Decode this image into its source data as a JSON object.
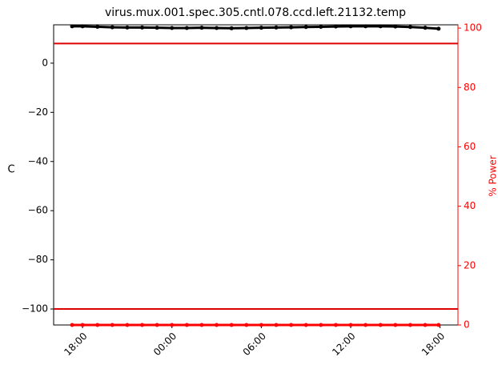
{
  "chart_data": {
    "type": "line",
    "title": "virus.mux.001.spec.305.cntl.078.ccd.left.21132.temp",
    "ylabel": "C",
    "y2label": "% Power",
    "x": [
      -0.7,
      0,
      1,
      2,
      3,
      4,
      5,
      6,
      7,
      8,
      9,
      10,
      11,
      12,
      13,
      14,
      15,
      16,
      17,
      18,
      19,
      20,
      21,
      22,
      23,
      23.9
    ],
    "series": [
      {
        "name": "C",
        "color": "#000000",
        "values": [
          15.0,
          15.0,
          14.8,
          14.6,
          14.5,
          14.5,
          14.4,
          14.3,
          14.3,
          14.4,
          14.3,
          14.2,
          14.3,
          14.4,
          14.5,
          14.6,
          14.7,
          14.8,
          14.9,
          15.0,
          15.0,
          15.0,
          14.9,
          14.7,
          14.4,
          14.0
        ]
      },
      {
        "name": "% Power",
        "color": "#ff0000",
        "axis": "y2",
        "values": [
          0,
          0,
          0,
          0,
          0,
          0,
          0,
          0,
          0,
          0,
          0,
          0,
          0,
          0,
          0,
          0,
          0,
          0,
          0,
          0,
          0,
          0,
          0,
          0,
          0,
          0
        ]
      }
    ],
    "hlines": [
      {
        "value": 8,
        "color": "#dd0000"
      },
      {
        "value": -100,
        "color": "#dd0000"
      }
    ],
    "xlim": [
      -1.94,
      25.2
    ],
    "xticks": [
      {
        "value": 0,
        "label": "18:00"
      },
      {
        "value": 6,
        "label": "00:00"
      },
      {
        "value": 12,
        "label": "06:00"
      },
      {
        "value": 18,
        "label": "12:00"
      },
      {
        "value": 24,
        "label": "18:00"
      }
    ],
    "ylim": [
      -106.5,
      15.6
    ],
    "yticks": [
      {
        "value": -100,
        "label": "−100"
      },
      {
        "value": -80,
        "label": "−80"
      },
      {
        "value": -60,
        "label": "−60"
      },
      {
        "value": -40,
        "label": "−40"
      },
      {
        "value": -20,
        "label": "−20"
      },
      0
    ],
    "y2lim": [
      0,
      101.1
    ],
    "y2ticks": [
      0,
      20,
      40,
      60,
      80,
      100
    ],
    "y2color": "#ff0000"
  }
}
